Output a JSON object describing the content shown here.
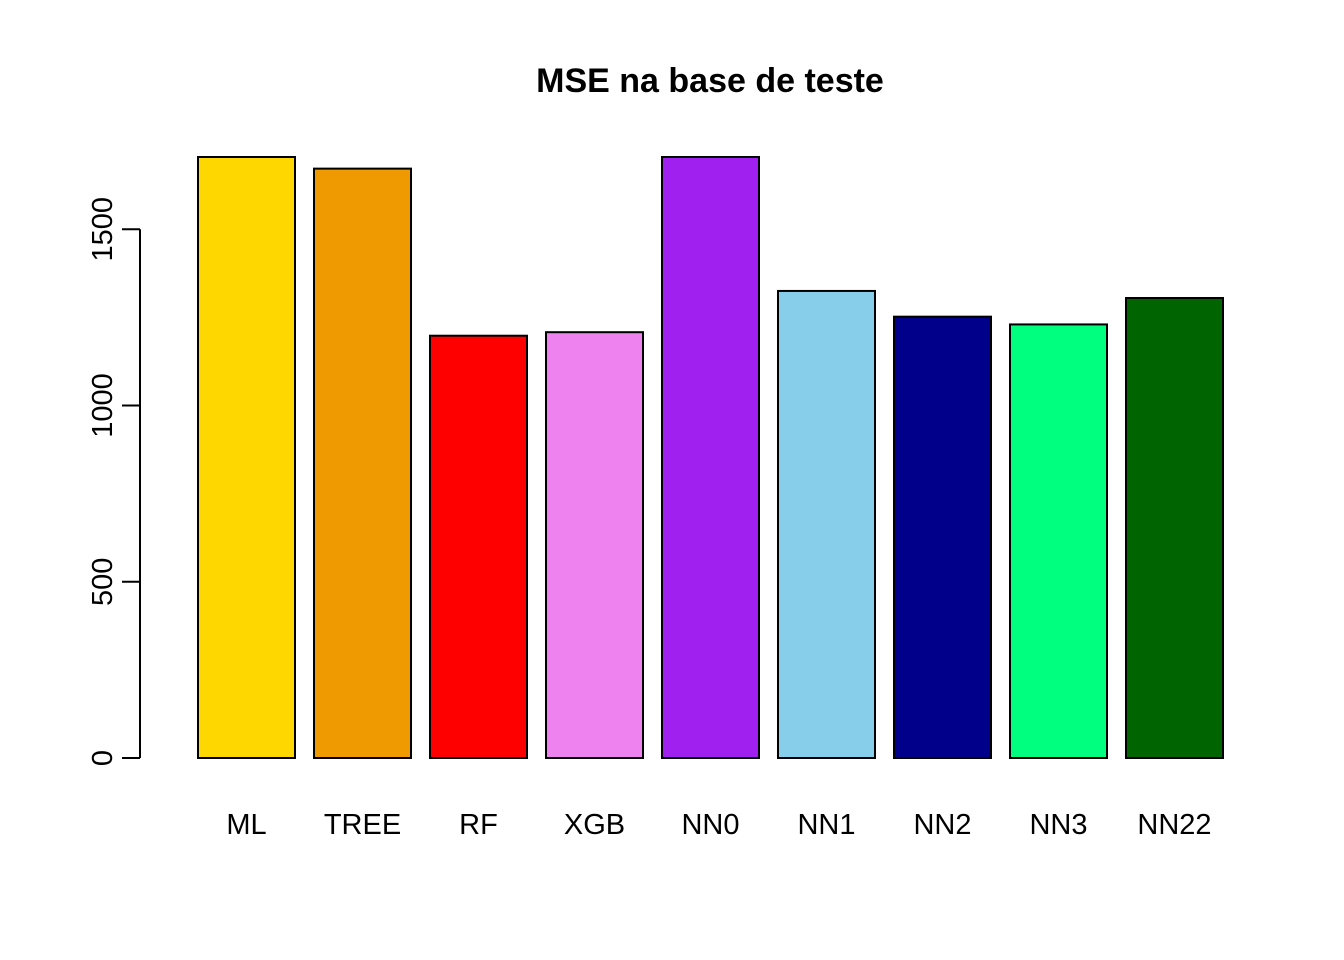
{
  "chart_data": {
    "type": "bar",
    "title": "MSE na base de teste",
    "xlabel": "",
    "ylabel": "",
    "categories": [
      "ML",
      "TREE",
      "RF",
      "XGB",
      "NN0",
      "NN1",
      "NN2",
      "NN3",
      "NN22"
    ],
    "values": [
      1705,
      1672,
      1198,
      1208,
      1705,
      1325,
      1252,
      1230,
      1305
    ],
    "colors": [
      "#FFD700",
      "#EE9A00",
      "#FF0000",
      "#EE82EE",
      "#A020F0",
      "#87CEEB",
      "#00008B",
      "#00FF7F",
      "#006400"
    ],
    "ylim": [
      0,
      1705
    ],
    "yticks": [
      0,
      500,
      1000,
      1500
    ],
    "ytick_labels": [
      "0",
      "500",
      "1000",
      "1500"
    ],
    "grid": false,
    "legend": "none"
  }
}
